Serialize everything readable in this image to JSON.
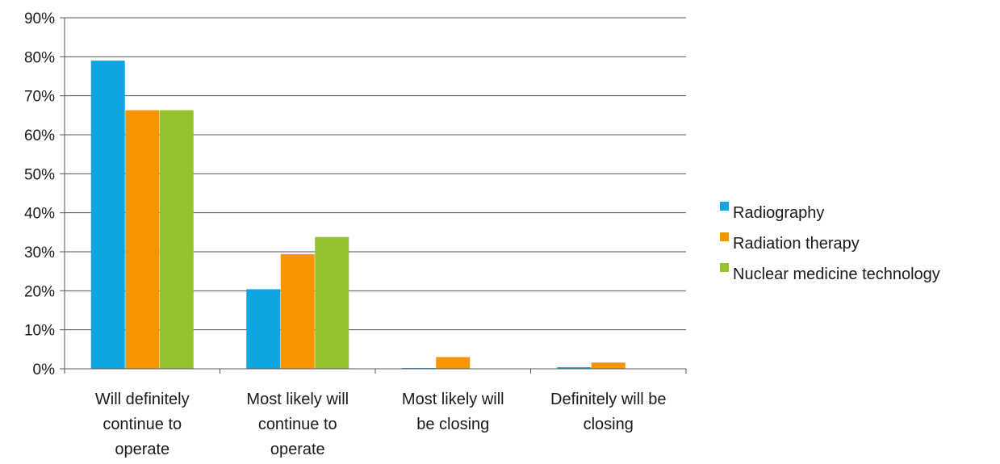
{
  "chart_data": {
    "type": "bar",
    "categories": [
      [
        "Will definitely",
        "continue to",
        "operate"
      ],
      [
        "Most likely will",
        "continue to",
        "operate"
      ],
      [
        "Most likely will",
        "be closing"
      ],
      [
        "Definitely will be",
        "closing"
      ]
    ],
    "series": [
      {
        "name": "Radiography",
        "color": "#0ea5e3",
        "values": [
          79,
          20.4,
          0.2,
          0.4
        ]
      },
      {
        "name": "Radiation therapy",
        "color": "#f79500",
        "values": [
          66.3,
          29.4,
          3.0,
          1.6
        ]
      },
      {
        "name": "Nuclear medicine technology",
        "color": "#95c22e",
        "values": [
          66.3,
          33.8,
          0,
          0
        ]
      }
    ],
    "ylim": [
      0,
      90
    ],
    "yticks": [
      "0%",
      "10%",
      "20%",
      "30%",
      "40%",
      "50%",
      "60%",
      "70%",
      "80%",
      "90%"
    ],
    "grid": true,
    "legend_position": "right"
  }
}
